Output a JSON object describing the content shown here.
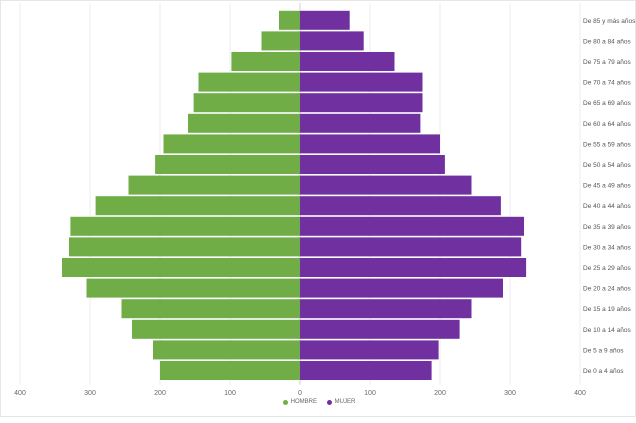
{
  "chart_data": {
    "type": "bar",
    "orientation": "horizontal",
    "subtype": "population-pyramid",
    "categories": [
      "De 0 a 4 años",
      "De 5 a 9 años",
      "De 10 a 14 años",
      "De 15 a 19 años",
      "De 20 a 24 años",
      "De 25 a 29 años",
      "De 30 a 34 años",
      "De 35 a 39 años",
      "De 40 a 44 años",
      "De 45 a 49 años",
      "De 50 a 54 años",
      "De 55 a 59 años",
      "De 60 a 64 años",
      "De 65 a 69 años",
      "De 70 a 74 años",
      "De 75 a 79 años",
      "De 80 a 84 años",
      "De 85 y más años"
    ],
    "series": [
      {
        "name": "HOMBRE",
        "color": "#70ad47",
        "side": "left",
        "values": [
          200,
          210,
          240,
          255,
          305,
          340,
          330,
          328,
          292,
          245,
          207,
          195,
          160,
          152,
          145,
          98,
          55,
          30
        ]
      },
      {
        "name": "MUJER",
        "color": "#7030a0",
        "side": "right",
        "values": [
          188,
          198,
          228,
          245,
          290,
          323,
          316,
          320,
          287,
          245,
          207,
          200,
          172,
          175,
          175,
          135,
          91,
          71
        ]
      }
    ],
    "xlim": [
      -400,
      400
    ],
    "xticks": [
      "400",
      "300",
      "200",
      "100",
      "0",
      "100",
      "200",
      "300",
      "400"
    ],
    "grid": true,
    "legend_position": "bottom"
  }
}
